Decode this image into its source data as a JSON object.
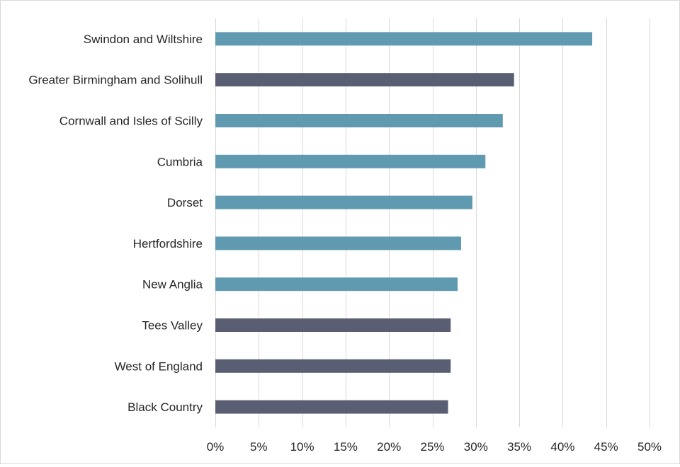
{
  "chart_data": {
    "type": "bar",
    "orientation": "horizontal",
    "title": "",
    "xlabel": "",
    "ylabel": "",
    "xlim": [
      0,
      50
    ],
    "x_tick_values": [
      0,
      5,
      10,
      15,
      20,
      25,
      30,
      35,
      40,
      45,
      50
    ],
    "x_tick_labels": [
      "0%",
      "5%",
      "10%",
      "15%",
      "20%",
      "25%",
      "30%",
      "35%",
      "40%",
      "45%",
      "50%"
    ],
    "grid": "vertical gridlines on",
    "legend": "none",
    "categories": [
      "Swindon and Wiltshire",
      "Greater Birmingham and Solihull",
      "Cornwall and Isles of Scilly",
      "Cumbria",
      "Dorset",
      "Hertfordshire",
      "New Anglia",
      "Tees Valley",
      "West of England",
      "Black Country"
    ],
    "values": [
      43.4,
      34.4,
      33.1,
      31.1,
      29.6,
      28.3,
      27.9,
      27.1,
      27.1,
      26.8
    ],
    "bar_colors": [
      "#5f9ab1",
      "#5a5e73",
      "#5f9ab1",
      "#5f9ab1",
      "#5f9ab1",
      "#5f9ab1",
      "#5f9ab1",
      "#5a5e73",
      "#5a5e73",
      "#5a5e73"
    ]
  },
  "colors": {
    "teal": "#5f9ab1",
    "slate": "#5a5e73",
    "grid": "#d9d9d9",
    "text": "#262626"
  }
}
